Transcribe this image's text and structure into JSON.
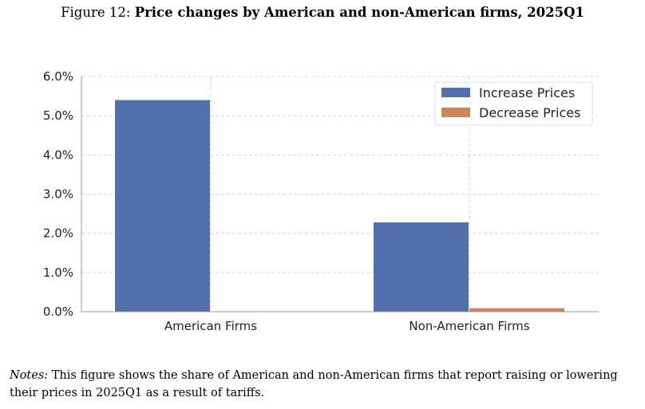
{
  "figure": {
    "label": "Figure 12:",
    "title": "Price changes by American and non-American firms, 2025Q1"
  },
  "notes": {
    "label": "Notes:",
    "text": "This figure shows the share of American and non-American firms that report raising or lowering their prices in 2025Q1 as a result of tariffs."
  },
  "chart_data": {
    "type": "bar",
    "categories": [
      "American Firms",
      "Non-American Firms"
    ],
    "series": [
      {
        "name": "Increase Prices",
        "values": [
          5.4,
          2.28
        ],
        "color": "#5470aa"
      },
      {
        "name": "Decrease Prices",
        "values": [
          0.0,
          0.09
        ],
        "color": "#cc8458"
      }
    ],
    "ylim": [
      0,
      6
    ],
    "yticks": [
      "0.0%",
      "1.0%",
      "2.0%",
      "3.0%",
      "4.0%",
      "5.0%",
      "6.0%"
    ],
    "ytick_values": [
      0,
      1,
      2,
      3,
      4,
      5,
      6
    ],
    "xlabel": "",
    "ylabel": "",
    "grid": true,
    "legend_position": "top-right"
  }
}
